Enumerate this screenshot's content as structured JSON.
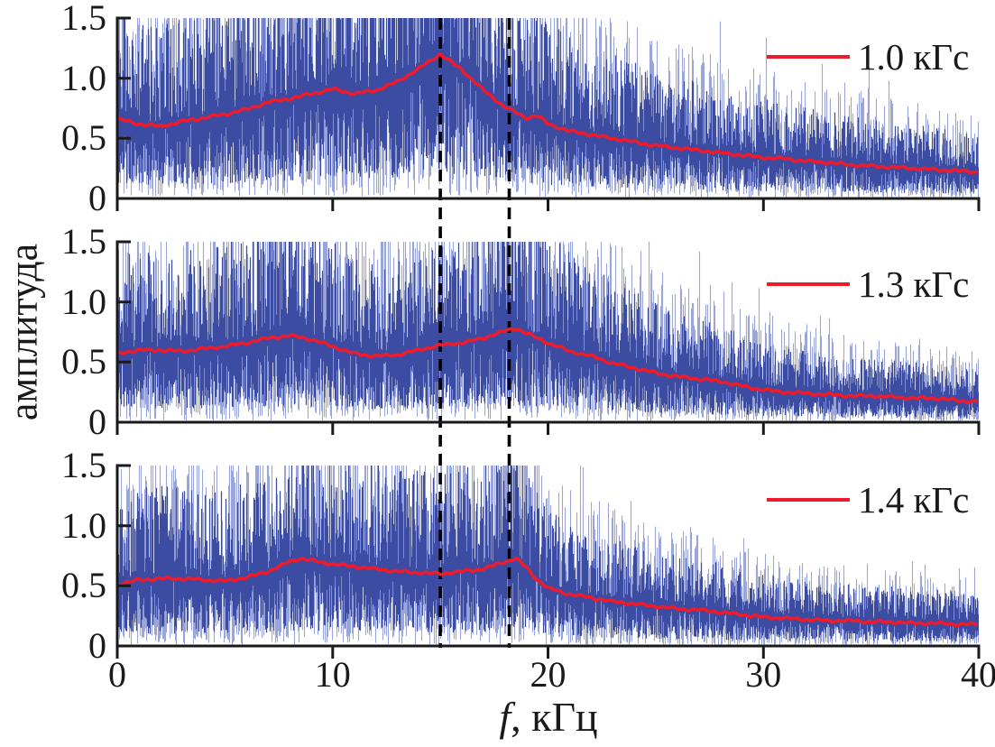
{
  "figure": {
    "ylabel": "амплитуда",
    "xlabel_var": "f",
    "xlabel_unit": ", кГц"
  },
  "chart_data": {
    "type": "line",
    "title": "",
    "xlabel": "f, кГц",
    "ylabel": "амплитуда",
    "x_range": [
      0,
      40
    ],
    "y_range": [
      0,
      1.5
    ],
    "x_ticks": [
      "0",
      "10",
      "20",
      "30",
      "40"
    ],
    "x_tick_values": [
      0,
      10,
      20,
      30,
      40
    ],
    "y_ticks": [
      "1.5",
      "1.0",
      "0.5",
      "0"
    ],
    "y_tick_values": [
      1.5,
      1.0,
      0.5,
      0
    ],
    "grid": false,
    "legend_position": "upper-right-inside",
    "dashed_vlines_khz": [
      15.0,
      18.2
    ],
    "colors": {
      "noise_dark": "#3c4ca2",
      "noise_light": "#9aa5d9",
      "mean_line": "#ee1b2c",
      "dashed_line": "#000000",
      "axis": "#1a1a1a"
    },
    "panels": [
      {
        "legend": "1.0 кГс",
        "noise_seed": 1101,
        "mean_curve": [
          [
            0,
            0.66
          ],
          [
            1,
            0.62
          ],
          [
            2,
            0.6
          ],
          [
            3,
            0.64
          ],
          [
            4,
            0.67
          ],
          [
            5,
            0.7
          ],
          [
            6,
            0.74
          ],
          [
            7,
            0.8
          ],
          [
            8,
            0.83
          ],
          [
            9,
            0.87
          ],
          [
            10,
            0.91
          ],
          [
            11,
            0.87
          ],
          [
            12,
            0.9
          ],
          [
            13,
            0.97
          ],
          [
            14,
            1.08
          ],
          [
            15,
            1.2
          ],
          [
            16,
            1.07
          ],
          [
            17,
            0.9
          ],
          [
            18,
            0.76
          ],
          [
            19,
            0.67
          ],
          [
            19.5,
            0.69
          ],
          [
            20,
            0.62
          ],
          [
            21,
            0.56
          ],
          [
            22,
            0.53
          ],
          [
            23,
            0.5
          ],
          [
            24,
            0.47
          ],
          [
            25,
            0.44
          ],
          [
            26,
            0.42
          ],
          [
            27,
            0.4
          ],
          [
            28,
            0.38
          ],
          [
            29,
            0.36
          ],
          [
            30,
            0.34
          ],
          [
            31,
            0.33
          ],
          [
            32,
            0.31
          ],
          [
            33,
            0.3
          ],
          [
            34,
            0.28
          ],
          [
            35,
            0.27
          ],
          [
            36,
            0.26
          ],
          [
            37,
            0.25
          ],
          [
            38,
            0.24
          ],
          [
            39,
            0.23
          ],
          [
            40,
            0.22
          ]
        ]
      },
      {
        "legend": "1.3 кГс",
        "noise_seed": 2302,
        "mean_curve": [
          [
            0,
            0.57
          ],
          [
            1,
            0.6
          ],
          [
            2,
            0.6
          ],
          [
            3,
            0.59
          ],
          [
            4,
            0.61
          ],
          [
            5,
            0.63
          ],
          [
            6,
            0.66
          ],
          [
            7,
            0.7
          ],
          [
            8,
            0.72
          ],
          [
            9,
            0.69
          ],
          [
            10,
            0.63
          ],
          [
            11,
            0.57
          ],
          [
            12,
            0.55
          ],
          [
            13,
            0.56
          ],
          [
            14,
            0.6
          ],
          [
            15,
            0.64
          ],
          [
            16,
            0.66
          ],
          [
            17,
            0.7
          ],
          [
            18,
            0.76
          ],
          [
            18.5,
            0.78
          ],
          [
            19,
            0.74
          ],
          [
            20,
            0.66
          ],
          [
            21,
            0.59
          ],
          [
            22,
            0.55
          ],
          [
            23,
            0.49
          ],
          [
            24,
            0.45
          ],
          [
            25,
            0.41
          ],
          [
            26,
            0.38
          ],
          [
            27,
            0.36
          ],
          [
            28,
            0.34
          ],
          [
            29,
            0.3
          ],
          [
            30,
            0.27
          ],
          [
            31,
            0.25
          ],
          [
            32,
            0.24
          ],
          [
            33,
            0.23
          ],
          [
            34,
            0.22
          ],
          [
            35,
            0.22
          ],
          [
            36,
            0.21
          ],
          [
            37,
            0.2
          ],
          [
            38,
            0.2
          ],
          [
            39,
            0.18
          ],
          [
            40,
            0.17
          ]
        ]
      },
      {
        "legend": "1.4 кГс",
        "noise_seed": 3403,
        "mean_curve": [
          [
            0,
            0.51
          ],
          [
            1,
            0.55
          ],
          [
            2,
            0.56
          ],
          [
            3,
            0.56
          ],
          [
            4,
            0.55
          ],
          [
            5,
            0.54
          ],
          [
            6,
            0.57
          ],
          [
            7,
            0.62
          ],
          [
            8,
            0.7
          ],
          [
            8.5,
            0.73
          ],
          [
            9,
            0.71
          ],
          [
            10,
            0.68
          ],
          [
            11,
            0.66
          ],
          [
            12,
            0.64
          ],
          [
            13,
            0.62
          ],
          [
            14,
            0.61
          ],
          [
            15,
            0.6
          ],
          [
            16,
            0.62
          ],
          [
            17,
            0.64
          ],
          [
            18,
            0.7
          ],
          [
            18.5,
            0.73
          ],
          [
            19,
            0.65
          ],
          [
            19.5,
            0.55
          ],
          [
            20,
            0.48
          ],
          [
            21,
            0.43
          ],
          [
            22,
            0.4
          ],
          [
            23,
            0.37
          ],
          [
            24,
            0.35
          ],
          [
            25,
            0.33
          ],
          [
            26,
            0.31
          ],
          [
            27,
            0.3
          ],
          [
            28,
            0.28
          ],
          [
            29,
            0.26
          ],
          [
            30,
            0.24
          ],
          [
            31,
            0.23
          ],
          [
            32,
            0.22
          ],
          [
            33,
            0.21
          ],
          [
            34,
            0.21
          ],
          [
            35,
            0.2
          ],
          [
            36,
            0.2
          ],
          [
            37,
            0.19
          ],
          [
            38,
            0.19
          ],
          [
            39,
            0.18
          ],
          [
            40,
            0.18
          ]
        ]
      }
    ]
  }
}
